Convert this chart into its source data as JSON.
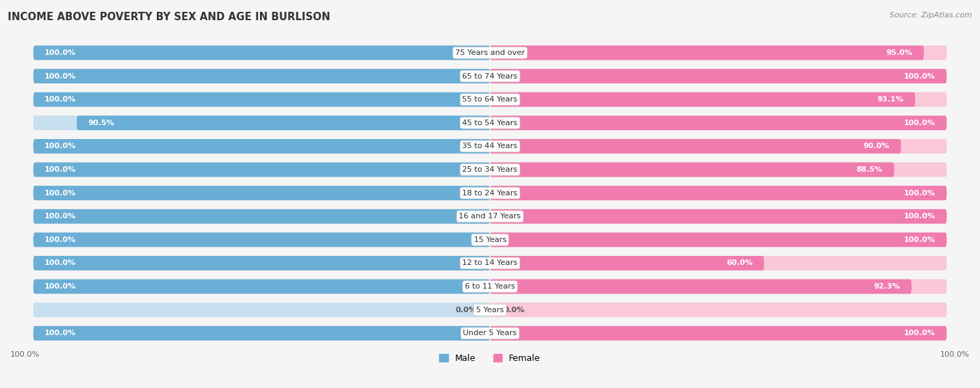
{
  "title": "INCOME ABOVE POVERTY BY SEX AND AGE IN BURLISON",
  "source": "Source: ZipAtlas.com",
  "categories": [
    "Under 5 Years",
    "5 Years",
    "6 to 11 Years",
    "12 to 14 Years",
    "15 Years",
    "16 and 17 Years",
    "18 to 24 Years",
    "25 to 34 Years",
    "35 to 44 Years",
    "45 to 54 Years",
    "55 to 64 Years",
    "65 to 74 Years",
    "75 Years and over"
  ],
  "male": [
    100.0,
    0.0,
    100.0,
    100.0,
    100.0,
    100.0,
    100.0,
    100.0,
    100.0,
    90.5,
    100.0,
    100.0,
    100.0
  ],
  "female": [
    100.0,
    0.0,
    92.3,
    60.0,
    100.0,
    100.0,
    100.0,
    88.5,
    90.0,
    100.0,
    93.1,
    100.0,
    95.0
  ],
  "male_color": "#6AAED6",
  "female_color": "#F07BAE",
  "male_light_color": "#C8DFEF",
  "female_light_color": "#FAC8D8",
  "bg_row_color": "#EBEBEB",
  "bg_color": "#F5F5F5",
  "legend_male": "Male",
  "legend_female": "Female",
  "bar_height": 0.62,
  "row_gap_color": "#FFFFFF"
}
